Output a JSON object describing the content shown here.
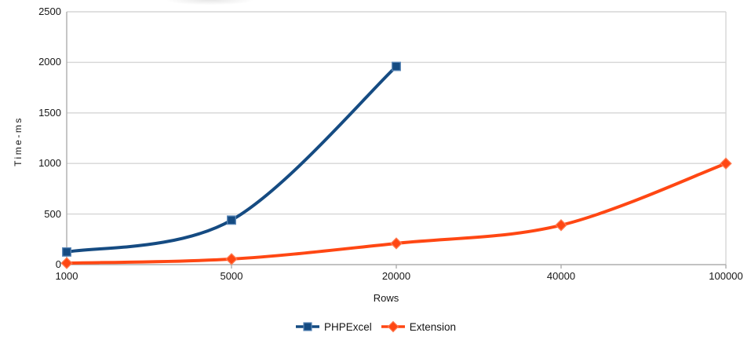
{
  "chart_data": {
    "type": "line",
    "smooth": true,
    "title": "",
    "xlabel": "Rows",
    "ylabel": "Time-ms",
    "categories": [
      "1000",
      "5000",
      "20000",
      "40000",
      "100000"
    ],
    "series": [
      {
        "name": "PHPExcel",
        "marker": "square",
        "color": "#154B82",
        "marker_border": "#5B87B7",
        "values": [
          125,
          440,
          1960,
          null,
          null
        ]
      },
      {
        "name": "Extension",
        "marker": "diamond",
        "color": "#FF4713",
        "marker_border": "#FF7A50",
        "values": [
          15,
          55,
          210,
          390,
          1000
        ]
      }
    ],
    "y_ticks": [
      0,
      500,
      1000,
      1500,
      2000,
      2500
    ],
    "ylim": [
      0,
      2500
    ],
    "grid": "horizontal",
    "legend_position": "bottom"
  },
  "colors": {
    "background": "#FFFFFF",
    "gridline": "#D6D6D6",
    "axis_line": "#AEAEAE",
    "text": "#161616"
  }
}
